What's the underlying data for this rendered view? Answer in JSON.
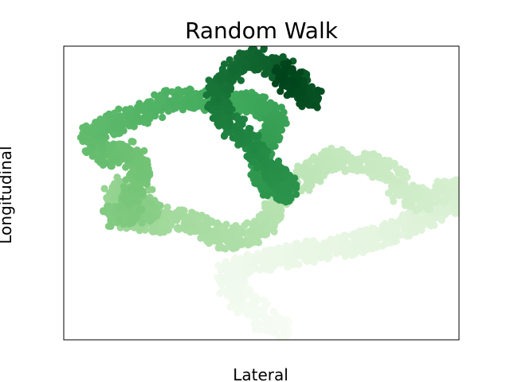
{
  "chart_data": {
    "type": "scatter",
    "title": "Random Walk",
    "xlabel": "Lateral",
    "ylabel": "Longitudinal",
    "grid": false,
    "axis_ticks_visible": false,
    "colormap": "Greens",
    "color_encoding": "point order (later points darker green)",
    "colors": {
      "light": "#f7fcf5",
      "mid": "#74c476",
      "dark": "#00441b"
    },
    "xlim": [
      -5,
      130
    ],
    "ylim": [
      -20,
      80
    ],
    "series": [
      {
        "path_x": [
          70,
          62,
          58,
          55,
          52,
          50,
          57,
          68,
          78,
          90,
          103,
          115,
          125,
          132,
          129,
          122,
          118,
          110,
          108,
          98,
          88,
          78,
          70,
          66,
          64,
          58,
          52,
          45,
          40,
          32,
          26,
          18,
          12,
          16,
          22,
          26,
          20,
          14,
          12,
          15,
          18,
          19,
          22,
          20,
          16,
          12,
          7,
          4,
          10,
          16,
          22,
          28,
          33,
          41,
          49,
          58,
          64,
          68,
          64,
          62,
          63,
          68,
          72,
          66,
          61,
          56,
          50,
          47,
          51,
          56,
          61,
          67,
          74,
          77,
          80,
          76,
          72,
          69
        ],
        "path_y": [
          -17,
          -12,
          -8,
          -5,
          -2,
          2,
          6,
          8,
          10,
          12,
          15,
          20,
          26,
          26,
          32,
          30,
          27,
          30,
          37,
          40,
          42,
          36,
          30,
          25,
          20,
          16,
          14,
          17,
          20,
          22,
          20,
          21,
          28,
          32,
          28,
          26,
          23,
          24,
          22,
          21,
          25,
          31,
          35,
          40,
          45,
          42,
          44,
          50,
          53,
          55,
          57,
          60,
          62,
          62,
          60,
          61,
          58,
          56,
          48,
          38,
          34,
          31,
          30,
          38,
          44,
          50,
          56,
          64,
          70,
          74,
          76,
          73,
          70,
          65,
          62,
          64,
          68,
          72
        ]
      }
    ]
  }
}
